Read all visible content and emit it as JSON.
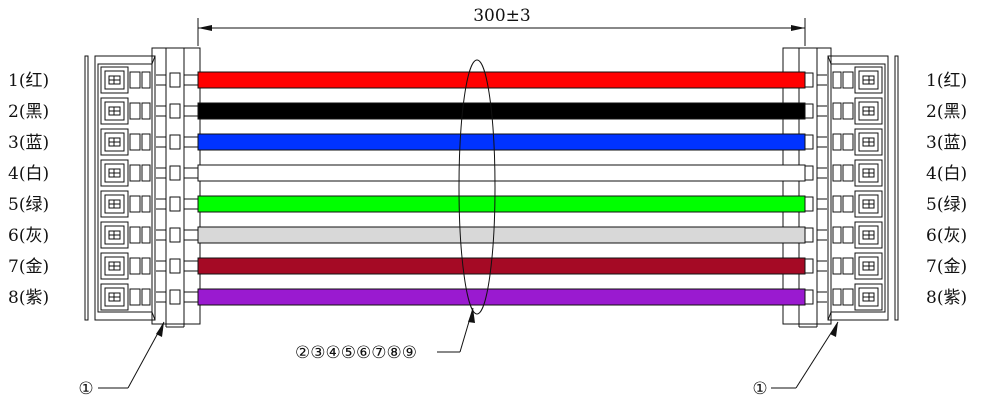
{
  "drawing": {
    "length_dimension": "300±3",
    "wire_callout": "②③④⑤⑥⑦⑧⑨",
    "connector_callout_left": "①",
    "connector_callout_right": "①"
  },
  "wires": [
    {
      "label": "1(红)",
      "color": "#ff0000"
    },
    {
      "label": "2(黑)",
      "color": "#000000"
    },
    {
      "label": "3(蓝)",
      "color": "#0033ff"
    },
    {
      "label": "4(白)",
      "color": "#ffffff"
    },
    {
      "label": "5(绿)",
      "color": "#00ff00"
    },
    {
      "label": "6(灰)",
      "color": "#d8d8d8"
    },
    {
      "label": "7(金)",
      "color": "#a50a25"
    },
    {
      "label": "8(紫)",
      "color": "#9a1ad0"
    }
  ]
}
